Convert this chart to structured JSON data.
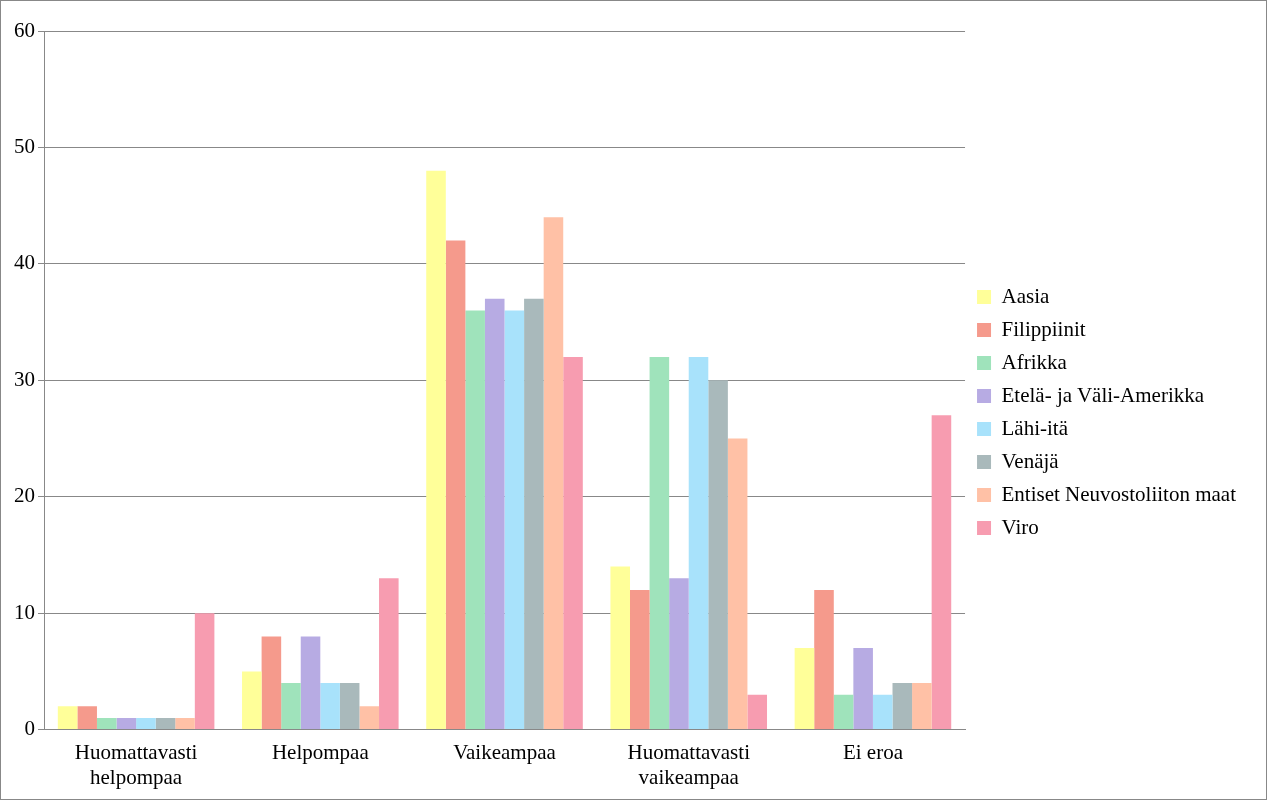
{
  "chart_data": {
    "type": "bar",
    "categories": [
      "Huomattavasti\nhelpompaa",
      "Helpompaa",
      "Vaikeampaa",
      "Huomattavasti\nvaikeampaa",
      "Ei eroa"
    ],
    "series": [
      {
        "name": "Aasia",
        "color": "#ffff99",
        "values": [
          2,
          5,
          48,
          14,
          7
        ]
      },
      {
        "name": "Filippiinit",
        "color": "#f59a8c",
        "values": [
          2,
          8,
          42,
          12,
          12
        ]
      },
      {
        "name": "Afrikka",
        "color": "#9fe3bb",
        "values": [
          1,
          4,
          36,
          32,
          3
        ]
      },
      {
        "name": "Etelä- ja Väli-Amerikka",
        "color": "#b7abe3",
        "values": [
          1,
          8,
          37,
          13,
          7
        ]
      },
      {
        "name": "Lähi-itä",
        "color": "#a8e2fb",
        "values": [
          1,
          4,
          36,
          32,
          3
        ]
      },
      {
        "name": "Venäjä",
        "color": "#a9b9bb",
        "values": [
          1,
          4,
          37,
          30,
          4
        ]
      },
      {
        "name": "Entiset Neuvostoliiton maat",
        "color": "#ffc1a6",
        "values": [
          1,
          2,
          44,
          25,
          4
        ]
      },
      {
        "name": "Viro",
        "color": "#f79cb0",
        "values": [
          10,
          13,
          32,
          3,
          27
        ]
      }
    ],
    "ylim": [
      0,
      60
    ],
    "yticks": [
      0,
      10,
      20,
      30,
      40,
      50,
      60
    ],
    "grid": "y",
    "legend": "right"
  }
}
